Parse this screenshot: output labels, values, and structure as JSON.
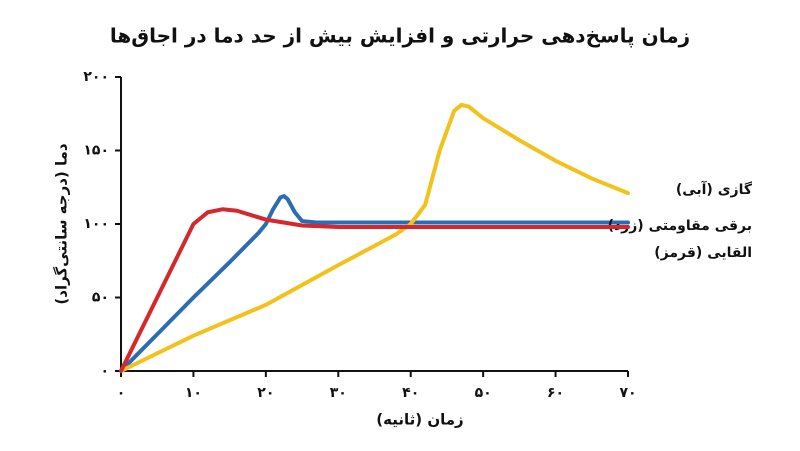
{
  "chart_data": {
    "type": "line",
    "title": "زمان پاسخ‌دهی حرارتی و افزایش بیش از حد دما در اجاق‌ها",
    "x_label": "زمان (ثانیه)",
    "y_label": "دما (درجه سانتی‌گراد)",
    "xlim": [
      0,
      70
    ],
    "ylim": [
      0,
      200
    ],
    "xticks": [
      {
        "value": 0,
        "label": "۰"
      },
      {
        "value": 10,
        "label": "۱۰"
      },
      {
        "value": 20,
        "label": "۲۰"
      },
      {
        "value": 30,
        "label": "۳۰"
      },
      {
        "value": 40,
        "label": "۴۰"
      },
      {
        "value": 50,
        "label": "۵۰"
      },
      {
        "value": 60,
        "label": "۶۰"
      },
      {
        "value": 70,
        "label": "۷۰"
      }
    ],
    "yticks": [
      {
        "value": 0,
        "label": "۰"
      },
      {
        "value": 50,
        "label": "۵۰"
      },
      {
        "value": 100,
        "label": "۱۰۰"
      },
      {
        "value": 150,
        "label": "۱۵۰"
      },
      {
        "value": 200,
        "label": "۲۰۰"
      }
    ],
    "series": [
      {
        "name": "گازی (آبی)",
        "color": "#2a6db5",
        "x": [
          0,
          5,
          10,
          15,
          19,
          20,
          21,
          22,
          22.5,
          23,
          24,
          25,
          27,
          30,
          40,
          50,
          60,
          70
        ],
        "values": [
          0,
          25,
          50,
          74,
          94,
          100,
          110,
          118,
          119,
          117,
          108,
          102,
          101,
          101,
          101,
          101,
          101,
          101
        ]
      },
      {
        "name": "برقی مقاومتی (زرد)",
        "color": "#f2c21b",
        "x": [
          0,
          10,
          20,
          30,
          38,
          40,
          42,
          44,
          46,
          47,
          48,
          50,
          55,
          60,
          65,
          70
        ],
        "values": [
          0,
          24,
          45,
          72,
          93,
          100,
          113,
          150,
          177,
          181,
          180,
          172,
          157,
          143,
          131,
          121
        ]
      },
      {
        "name": "القایی (قرمز)",
        "color": "#d4282d",
        "x": [
          0,
          5,
          10,
          12,
          14,
          16,
          18,
          20,
          25,
          30,
          40,
          50,
          60,
          70
        ],
        "values": [
          0,
          50,
          100,
          108,
          110,
          109,
          106,
          103,
          99,
          98,
          98,
          98,
          98,
          98
        ]
      }
    ]
  }
}
